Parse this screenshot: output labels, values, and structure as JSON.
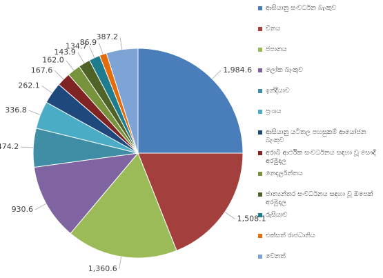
{
  "chart_data": {
    "type": "pie",
    "categories": [
      "ආසියානු සංවර්ධන බැංකුව",
      "චීනය",
      "ජපානය",
      "ලෝක බැංකුව",
      "ඉන්දියාව",
      "ප්‍රංශය",
      "ආසියානු යටිතල පහසුකම් ආයෝජන බැංකුව",
      "අරාබි ආර්ථික සංවර්ධනය සඳහා වූ සෞදි අරමුදල",
      "නෙදර්ලන්තය",
      "ජාත්‍යන්තර සංවර්ධනය සඳහා වූ ඔපෙක් අරමුදල",
      "රුසියාව",
      "එක්සත් රාජධානිය",
      "වෙනත්"
    ],
    "values": [
      1984.6,
      1508.1,
      1360.6,
      930.6,
      474.2,
      336.8,
      262.1,
      167.6,
      162.0,
      143.9,
      134.7,
      86.9,
      387.2
    ],
    "value_labels": [
      "1,984.6",
      "1,508.1",
      "1,360.6",
      "930.6",
      "474.2",
      "336.8",
      "262.1",
      "167.6",
      "162.0",
      "143.9",
      "134.7",
      "86.9",
      "387.2"
    ],
    "colors": [
      "#4a7ebb",
      "#a3403d",
      "#9bbb59",
      "#8064a2",
      "#3f8ea6",
      "#4bacc6",
      "#1f497d",
      "#7f2422",
      "#77933c",
      "#4f6228",
      "#1f7c8c",
      "#e46c0a",
      "#7ea4d6"
    ]
  }
}
